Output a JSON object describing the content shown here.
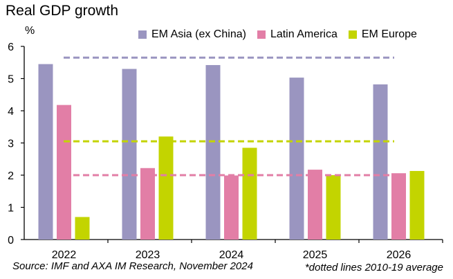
{
  "title": "Real GDP growth",
  "unit": "%",
  "source": "Source: IMF and AXA IM Research, November 2024",
  "footnote": "*dotted lines 2010-19 average",
  "chart_data": {
    "type": "bar",
    "categories": [
      "2022",
      "2023",
      "2024",
      "2025",
      "2026"
    ],
    "series": [
      {
        "name": "EM Asia (ex China)",
        "color": "#9a95c0",
        "values": [
          5.45,
          5.3,
          5.42,
          5.03,
          4.82
        ]
      },
      {
        "name": "Latin America",
        "color": "#e27ea6",
        "values": [
          4.18,
          2.22,
          1.99,
          2.17,
          2.06
        ]
      },
      {
        "name": "EM Europe",
        "color": "#c3d400",
        "values": [
          0.7,
          3.2,
          2.85,
          2.0,
          2.13
        ]
      }
    ],
    "reference_lines": [
      {
        "series": "EM Asia (ex China)",
        "value": 5.65,
        "style": "dashed"
      },
      {
        "series": "EM Europe",
        "value": 3.05,
        "style": "dashed"
      },
      {
        "series": "Latin America",
        "value": 2.0,
        "style": "dashed"
      }
    ],
    "ylim": [
      0,
      6
    ],
    "yticks": [
      "0",
      "1",
      "2",
      "3",
      "4",
      "5",
      "6"
    ],
    "xlabel": "",
    "ylabel": "%",
    "grid": false,
    "legend_position": "top-right"
  }
}
